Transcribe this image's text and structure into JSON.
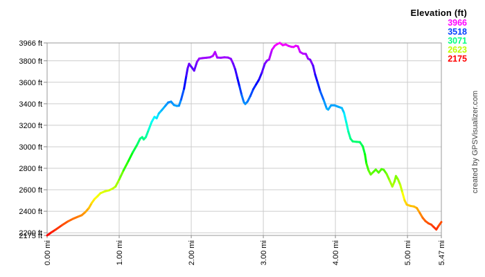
{
  "watermark": "created by GPSVisualizer.com",
  "chart_data": {
    "type": "line",
    "title": "",
    "subtitle": "",
    "grid": true,
    "legend": {
      "title": "Elevation (ft)",
      "position": "top-right",
      "entries": [
        {
          "label": "3966",
          "value": 3966,
          "color": "#ff00ff"
        },
        {
          "label": "3518",
          "value": 3518,
          "color": "#0040ff"
        },
        {
          "label": "3071",
          "value": 3071,
          "color": "#00ff80"
        },
        {
          "label": "2623",
          "value": 2623,
          "color": "#bfff00"
        },
        {
          "label": "2175",
          "value": 2175,
          "color": "#ff0000"
        }
      ]
    },
    "xlim": [
      0,
      5.47
    ],
    "ylim": [
      2175,
      3966
    ],
    "x_ticks": [
      {
        "v": 0.0,
        "label": "0.00 mi"
      },
      {
        "v": 1.0,
        "label": "1.00 mi"
      },
      {
        "v": 2.0,
        "label": "2.00 mi"
      },
      {
        "v": 3.0,
        "label": "3.00 mi"
      },
      {
        "v": 4.0,
        "label": "4.00 mi"
      },
      {
        "v": 5.0,
        "label": "5.00 mi"
      },
      {
        "v": 5.47,
        "label": "5.47 mi"
      }
    ],
    "y_ticks": [
      {
        "v": 3966,
        "label": "3966 ft"
      },
      {
        "v": 3800,
        "label": "3800 ft"
      },
      {
        "v": 3600,
        "label": "3600 ft"
      },
      {
        "v": 3400,
        "label": "3400 ft"
      },
      {
        "v": 3200,
        "label": "3200 ft"
      },
      {
        "v": 3000,
        "label": "3000 ft"
      },
      {
        "v": 2800,
        "label": "2800 ft"
      },
      {
        "v": 2600,
        "label": "2600 ft"
      },
      {
        "v": 2400,
        "label": "2400 ft"
      },
      {
        "v": 2200,
        "label": "2200 ft"
      },
      {
        "v": 2175,
        "label": "2175 ft"
      }
    ],
    "color_scale": {
      "mode": "hue-by-elevation",
      "min": 2175,
      "max": 3966,
      "min_hue": 0,
      "max_hue": 300
    },
    "series": [
      {
        "name": "elevation-profile",
        "points": [
          [
            0.0,
            2175
          ],
          [
            0.06,
            2204
          ],
          [
            0.12,
            2230
          ],
          [
            0.21,
            2272
          ],
          [
            0.29,
            2306
          ],
          [
            0.36,
            2330
          ],
          [
            0.43,
            2350
          ],
          [
            0.48,
            2363
          ],
          [
            0.53,
            2392
          ],
          [
            0.58,
            2430
          ],
          [
            0.62,
            2478
          ],
          [
            0.66,
            2515
          ],
          [
            0.7,
            2540
          ],
          [
            0.74,
            2568
          ],
          [
            0.8,
            2585
          ],
          [
            0.86,
            2595
          ],
          [
            0.91,
            2611
          ],
          [
            0.95,
            2630
          ],
          [
            1.0,
            2695
          ],
          [
            1.06,
            2780
          ],
          [
            1.13,
            2870
          ],
          [
            1.19,
            2950
          ],
          [
            1.25,
            3020
          ],
          [
            1.29,
            3075
          ],
          [
            1.32,
            3090
          ],
          [
            1.34,
            3068
          ],
          [
            1.37,
            3090
          ],
          [
            1.41,
            3160
          ],
          [
            1.45,
            3230
          ],
          [
            1.49,
            3278
          ],
          [
            1.52,
            3265
          ],
          [
            1.55,
            3310
          ],
          [
            1.59,
            3340
          ],
          [
            1.64,
            3380
          ],
          [
            1.68,
            3412
          ],
          [
            1.72,
            3420
          ],
          [
            1.76,
            3388
          ],
          [
            1.8,
            3380
          ],
          [
            1.83,
            3382
          ],
          [
            1.86,
            3440
          ],
          [
            1.9,
            3540
          ],
          [
            1.93,
            3655
          ],
          [
            1.95,
            3730
          ],
          [
            1.97,
            3772
          ],
          [
            2.0,
            3745
          ],
          [
            2.04,
            3708
          ],
          [
            2.08,
            3790
          ],
          [
            2.11,
            3820
          ],
          [
            2.16,
            3825
          ],
          [
            2.21,
            3828
          ],
          [
            2.26,
            3832
          ],
          [
            2.3,
            3845
          ],
          [
            2.33,
            3882
          ],
          [
            2.36,
            3830
          ],
          [
            2.41,
            3828
          ],
          [
            2.46,
            3832
          ],
          [
            2.51,
            3830
          ],
          [
            2.55,
            3818
          ],
          [
            2.58,
            3775
          ],
          [
            2.61,
            3720
          ],
          [
            2.64,
            3640
          ],
          [
            2.67,
            3560
          ],
          [
            2.7,
            3480
          ],
          [
            2.73,
            3415
          ],
          [
            2.75,
            3398
          ],
          [
            2.78,
            3420
          ],
          [
            2.82,
            3472
          ],
          [
            2.86,
            3535
          ],
          [
            2.9,
            3580
          ],
          [
            2.94,
            3625
          ],
          [
            2.98,
            3690
          ],
          [
            3.02,
            3772
          ],
          [
            3.05,
            3800
          ],
          [
            3.08,
            3812
          ],
          [
            3.12,
            3902
          ],
          [
            3.16,
            3940
          ],
          [
            3.2,
            3958
          ],
          [
            3.23,
            3966
          ],
          [
            3.27,
            3945
          ],
          [
            3.31,
            3952
          ],
          [
            3.35,
            3938
          ],
          [
            3.39,
            3930
          ],
          [
            3.42,
            3928
          ],
          [
            3.45,
            3940
          ],
          [
            3.48,
            3934
          ],
          [
            3.51,
            3882
          ],
          [
            3.55,
            3866
          ],
          [
            3.59,
            3864
          ],
          [
            3.62,
            3820
          ],
          [
            3.65,
            3810
          ],
          [
            3.69,
            3755
          ],
          [
            3.72,
            3670
          ],
          [
            3.75,
            3605
          ],
          [
            3.79,
            3515
          ],
          [
            3.84,
            3430
          ],
          [
            3.88,
            3355
          ],
          [
            3.9,
            3346
          ],
          [
            3.94,
            3385
          ],
          [
            3.99,
            3385
          ],
          [
            4.04,
            3372
          ],
          [
            4.09,
            3360
          ],
          [
            4.12,
            3315
          ],
          [
            4.15,
            3230
          ],
          [
            4.18,
            3140
          ],
          [
            4.21,
            3075
          ],
          [
            4.24,
            3050
          ],
          [
            4.29,
            3046
          ],
          [
            4.34,
            3043
          ],
          [
            4.38,
            3004
          ],
          [
            4.41,
            2930
          ],
          [
            4.43,
            2845
          ],
          [
            4.46,
            2780
          ],
          [
            4.49,
            2742
          ],
          [
            4.53,
            2768
          ],
          [
            4.56,
            2788
          ],
          [
            4.6,
            2760
          ],
          [
            4.64,
            2792
          ],
          [
            4.67,
            2786
          ],
          [
            4.71,
            2748
          ],
          [
            4.75,
            2690
          ],
          [
            4.79,
            2630
          ],
          [
            4.82,
            2676
          ],
          [
            4.84,
            2728
          ],
          [
            4.87,
            2695
          ],
          [
            4.9,
            2645
          ],
          [
            4.93,
            2574
          ],
          [
            4.96,
            2502
          ],
          [
            4.99,
            2462
          ],
          [
            5.04,
            2450
          ],
          [
            5.09,
            2444
          ],
          [
            5.13,
            2430
          ],
          [
            5.17,
            2386
          ],
          [
            5.21,
            2340
          ],
          [
            5.25,
            2308
          ],
          [
            5.29,
            2288
          ],
          [
            5.33,
            2276
          ],
          [
            5.36,
            2256
          ],
          [
            5.4,
            2230
          ],
          [
            5.43,
            2262
          ],
          [
            5.47,
            2300
          ]
        ]
      }
    ],
    "style": {
      "gridline_color": "#cccccc",
      "border_color": "#999999",
      "tick_color": "#888888",
      "label_color": "#000000",
      "line_width": 3
    }
  }
}
